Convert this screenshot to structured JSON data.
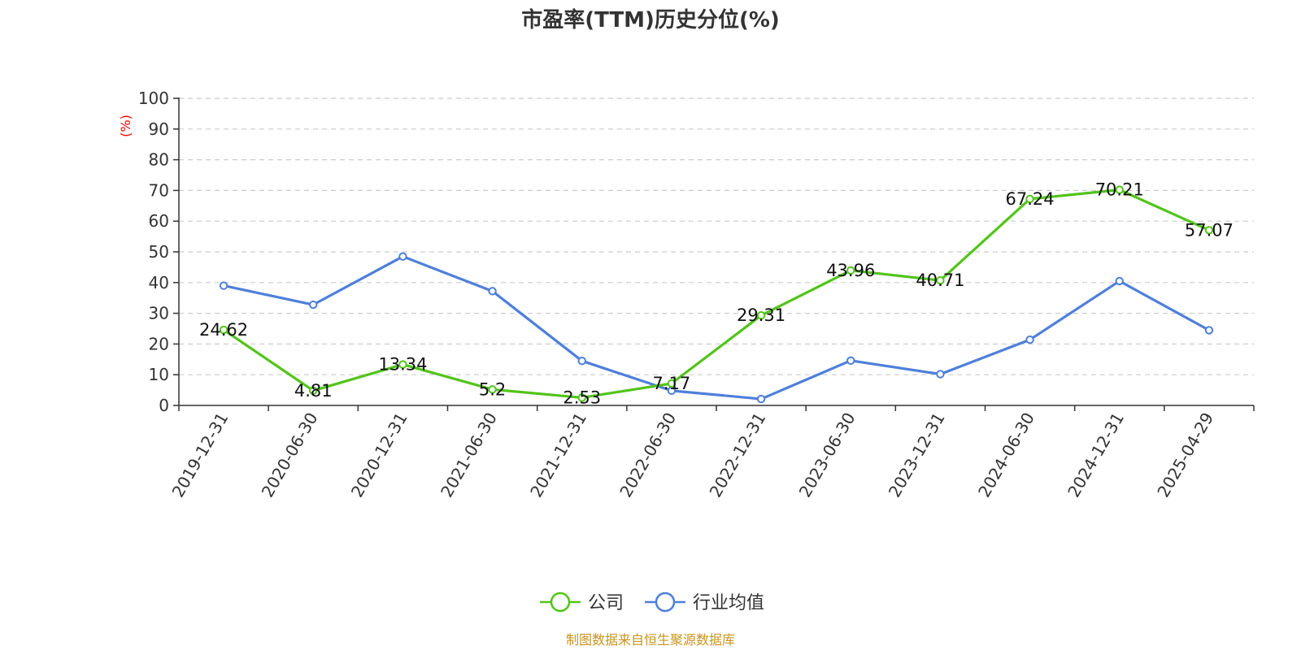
{
  "colors": {
    "company": "#52c41a",
    "industry": "#4e7fdb",
    "source_text": "#c8941f",
    "unit_text": "#ff0000"
  },
  "chart_data": {
    "type": "line",
    "title": "市盈率(TTM)历史分位(%)",
    "ylabel": "(%)",
    "ylim": [
      0,
      100
    ],
    "yticks": [
      0,
      10,
      20,
      30,
      40,
      50,
      60,
      70,
      80,
      90,
      100
    ],
    "grid": true,
    "legend_position": "bottom-center",
    "categories": [
      "2019-12-31",
      "2020-06-30",
      "2020-12-31",
      "2021-06-30",
      "2021-12-31",
      "2022-06-30",
      "2022-12-31",
      "2023-06-30",
      "2023-12-31",
      "2024-06-30",
      "2024-12-31",
      "2025-04-29"
    ],
    "series": [
      {
        "name": "公司",
        "values": [
          24.62,
          4.81,
          13.34,
          5.2,
          2.53,
          7.17,
          29.31,
          43.96,
          40.71,
          67.24,
          70.21,
          57.07
        ],
        "labels": [
          "24.62",
          "4.81",
          "13.34",
          "5.2",
          "2.53",
          "7.17",
          "29.31",
          "43.96",
          "40.71",
          "67.24",
          "70.21",
          "57.07"
        ]
      },
      {
        "name": "行业均值",
        "values": [
          39.0,
          32.8,
          48.5,
          37.2,
          14.5,
          4.8,
          2.1,
          14.6,
          10.2,
          21.4,
          40.5,
          24.5
        ]
      }
    ]
  },
  "footer": {
    "source": "制图数据来自恒生聚源数据库"
  }
}
